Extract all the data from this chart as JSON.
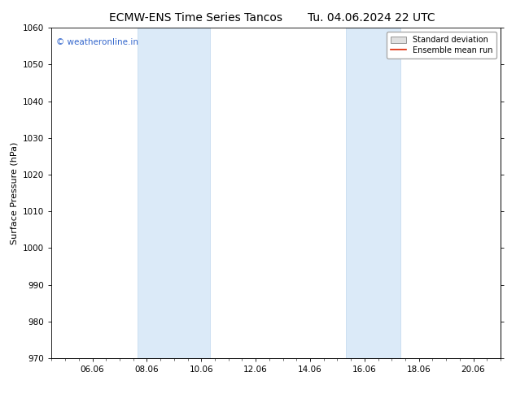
{
  "title_left": "ECMW-ENS Time Series Tancos",
  "title_right": "Tu. 04.06.2024 22 UTC",
  "ylabel": "Surface Pressure (hPa)",
  "ylim": [
    970,
    1060
  ],
  "yticks": [
    970,
    980,
    990,
    1000,
    1010,
    1020,
    1030,
    1040,
    1050,
    1060
  ],
  "xtick_labels": [
    "06.06",
    "08.06",
    "10.06",
    "12.06",
    "14.06",
    "16.06",
    "18.06",
    "20.06"
  ],
  "xtick_positions": [
    6,
    8,
    10,
    12,
    14,
    16,
    18,
    20
  ],
  "xlim": [
    4.5,
    21.0
  ],
  "shade_bands": [
    {
      "x_start": 7.67,
      "x_end": 10.33
    },
    {
      "x_start": 15.33,
      "x_end": 17.33
    }
  ],
  "shade_color": "#dbeaf8",
  "shade_edge_color": "#c0d8ef",
  "watermark_text": "© weatheronline.in",
  "watermark_color": "#3366cc",
  "legend_std_label": "Standard deviation",
  "legend_ens_label": "Ensemble mean run",
  "legend_ens_color": "#dd2200",
  "background_color": "#ffffff",
  "title_fontsize": 10,
  "axis_label_fontsize": 8,
  "tick_fontsize": 7.5
}
